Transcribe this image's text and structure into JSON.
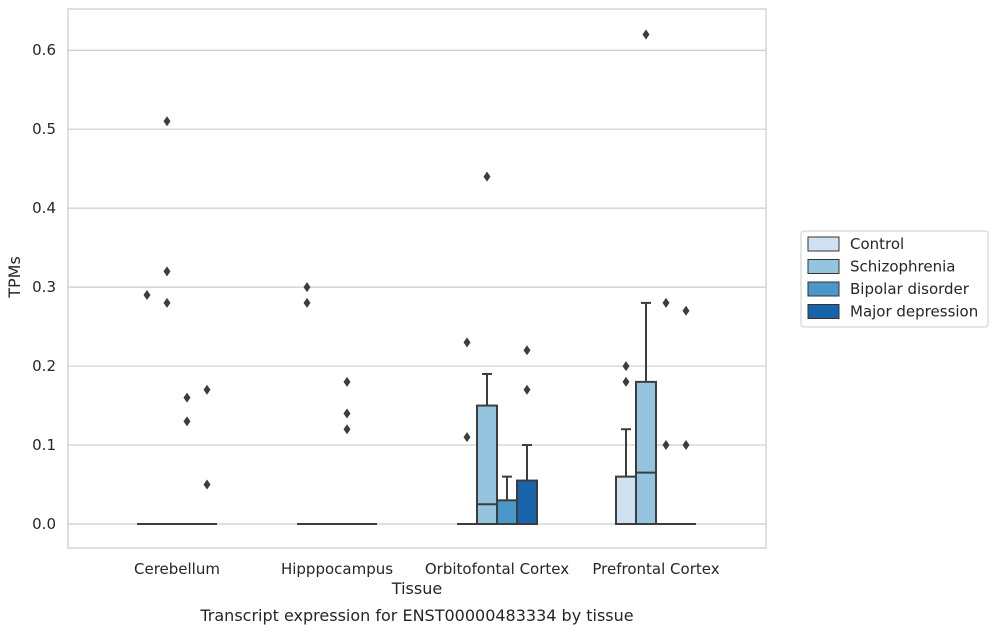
{
  "chart_data": {
    "type": "box",
    "title": "",
    "caption": "Transcript expression for ENST00000483334 by tissue",
    "xlabel": "Tissue",
    "ylabel": "TPMs",
    "ylim": [
      -0.03,
      0.65
    ],
    "yticks": [
      "0.0",
      "0.1",
      "0.2",
      "0.3",
      "0.4",
      "0.5",
      "0.6"
    ],
    "yticks_values": [
      0,
      0.1,
      0.2,
      0.3,
      0.4,
      0.5,
      0.6
    ],
    "grid": "horizontal",
    "legend_position": "right",
    "categories": [
      "Cerebellum",
      "Hipppocampus",
      "Orbitofontal Cortex",
      "Prefrontal Cortex"
    ],
    "series": [
      {
        "name": "Control",
        "color": "#d0e1f2",
        "boxes": [
          {
            "q1": 0,
            "median": 0,
            "q3": 0,
            "whisker_low": 0,
            "whisker_high": 0,
            "outliers": [
              0.29
            ]
          },
          {
            "q1": 0,
            "median": 0,
            "q3": 0,
            "whisker_low": 0,
            "whisker_high": 0,
            "outliers": [
              0.3,
              0.28
            ]
          },
          {
            "q1": 0,
            "median": 0,
            "q3": 0,
            "whisker_low": 0,
            "whisker_high": 0,
            "outliers": [
              0.23,
              0.11
            ]
          },
          {
            "q1": 0,
            "median": 0,
            "q3": 0.06,
            "whisker_low": 0,
            "whisker_high": 0.12,
            "outliers": [
              0.2,
              0.18
            ]
          }
        ]
      },
      {
        "name": "Schizophrenia",
        "color": "#94c4df",
        "boxes": [
          {
            "q1": 0,
            "median": 0,
            "q3": 0,
            "whisker_low": 0,
            "whisker_high": 0,
            "outliers": [
              0.51,
              0.32,
              0.28
            ]
          },
          {
            "q1": 0,
            "median": 0,
            "q3": 0,
            "whisker_low": 0,
            "whisker_high": 0,
            "outliers": []
          },
          {
            "q1": 0,
            "median": 0.025,
            "q3": 0.15,
            "whisker_low": 0,
            "whisker_high": 0.19,
            "outliers": [
              0.44
            ]
          },
          {
            "q1": 0,
            "median": 0.065,
            "q3": 0.18,
            "whisker_low": 0,
            "whisker_high": 0.28,
            "outliers": [
              0.62
            ]
          }
        ]
      },
      {
        "name": "Bipolar disorder",
        "color": "#4a98c9",
        "boxes": [
          {
            "q1": 0,
            "median": 0,
            "q3": 0,
            "whisker_low": 0,
            "whisker_high": 0,
            "outliers": [
              0.16,
              0.13
            ]
          },
          {
            "q1": 0,
            "median": 0,
            "q3": 0,
            "whisker_low": 0,
            "whisker_high": 0,
            "outliers": [
              0.18,
              0.14,
              0.12
            ]
          },
          {
            "q1": 0,
            "median": 0,
            "q3": 0.03,
            "whisker_low": 0,
            "whisker_high": 0.06,
            "outliers": []
          },
          {
            "q1": 0,
            "median": 0,
            "q3": 0,
            "whisker_low": 0,
            "whisker_high": 0,
            "outliers": [
              0.28,
              0.1
            ]
          }
        ]
      },
      {
        "name": "Major depression",
        "color": "#1764ab",
        "boxes": [
          {
            "q1": 0,
            "median": 0,
            "q3": 0,
            "whisker_low": 0,
            "whisker_high": 0,
            "outliers": [
              0.17,
              0.05
            ]
          },
          {
            "q1": 0,
            "median": 0,
            "q3": 0,
            "whisker_low": 0,
            "whisker_high": 0,
            "outliers": []
          },
          {
            "q1": 0,
            "median": 0,
            "q3": 0.055,
            "whisker_low": 0,
            "whisker_high": 0.1,
            "outliers": [
              0.22,
              0.17
            ]
          },
          {
            "q1": 0,
            "median": 0,
            "q3": 0,
            "whisker_low": 0,
            "whisker_high": 0,
            "outliers": [
              0.27,
              0.1
            ]
          }
        ]
      }
    ]
  }
}
